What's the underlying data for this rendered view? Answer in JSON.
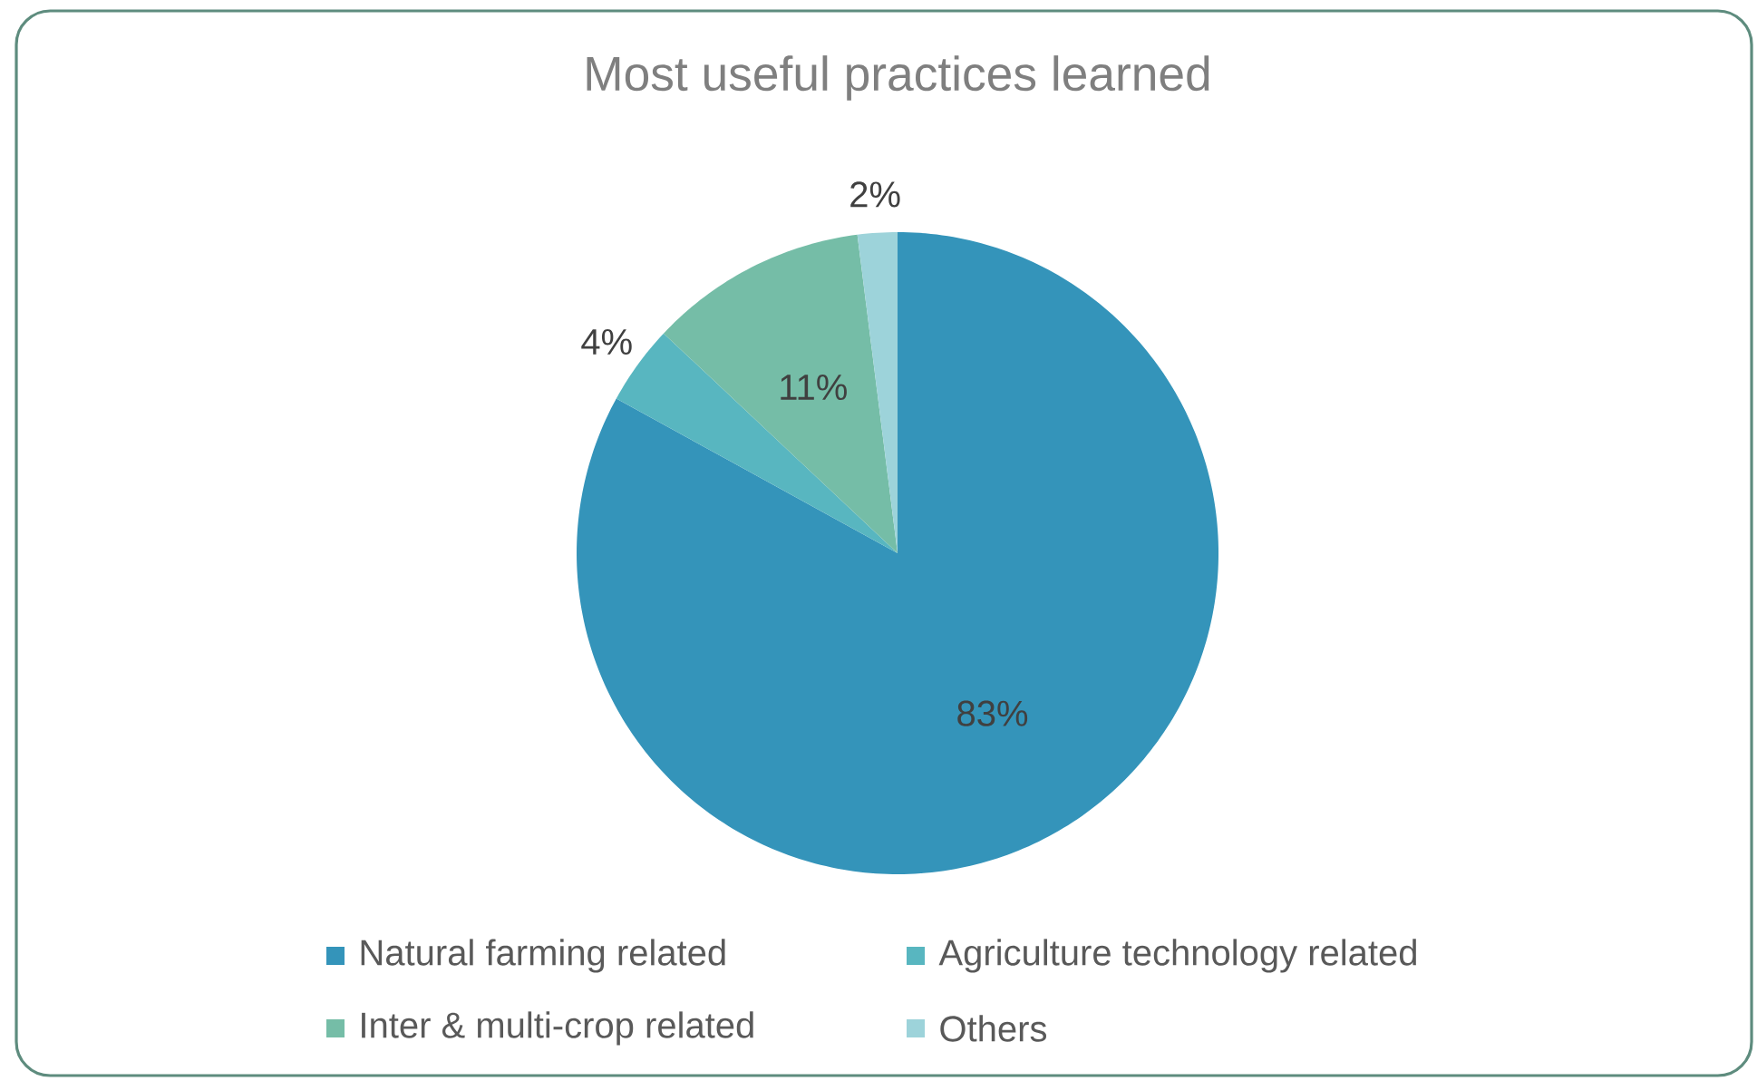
{
  "chart_data": {
    "type": "pie",
    "title": "Most useful practices learned",
    "categories": [
      "Natural farming related",
      "Agriculture technology related",
      "Inter & multi-crop related",
      "Others"
    ],
    "values": [
      83,
      4,
      11,
      2
    ],
    "value_labels": [
      "83%",
      "4%",
      "11%",
      "2%"
    ],
    "colors": [
      "#3494ba",
      "#58b6c0",
      "#75bda7",
      "#9dd3da"
    ],
    "legend": "bottom"
  }
}
